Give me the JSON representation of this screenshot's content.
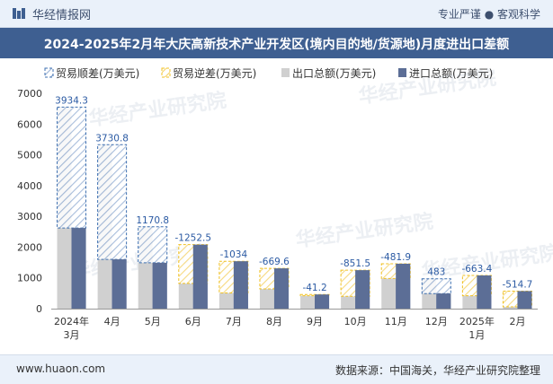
{
  "header": {
    "brand": "华经情报网",
    "slogan": "专业严谨 ● 客观科学"
  },
  "title": "2024-2025年2月年大庆高新技术产业开发区(境内目的地/货源地)月度进出口差额",
  "footer": {
    "website": "www.huaon.com",
    "source": "数据来源：中国海关，华经产业研究院整理"
  },
  "watermark": "华经产业研究院",
  "colors": {
    "surplus_border": "#3d6fb0",
    "deficit_border": "#f0c020",
    "export": "#d0d0d0",
    "import": "#5c6e96",
    "label": "#2b5aa3"
  },
  "chart_data": {
    "type": "bar",
    "legend": [
      "贸易顺差(万美元)",
      "贸易逆差(万美元)",
      "出口总额(万美元)",
      "进口总额(万美元)"
    ],
    "categories": [
      "2024年\n3月",
      "4月",
      "5月",
      "6月",
      "7月",
      "8月",
      "9月",
      "10月",
      "11月",
      "12月",
      "2025年\n1月",
      "2月"
    ],
    "export": [
      6550,
      5330,
      2660,
      820,
      510,
      640,
      420,
      400,
      980,
      970,
      420,
      60
    ],
    "import": [
      2620,
      1600,
      1490,
      2080,
      1540,
      1310,
      460,
      1250,
      1460,
      490,
      1080,
      570
    ],
    "balance": [
      3934.3,
      3730.8,
      1170.8,
      -1252.5,
      -1034,
      -669.6,
      -41.2,
      -851.5,
      -481.9,
      483,
      -663.4,
      -514.7
    ],
    "balance_labels": [
      "3934.3",
      "3730.8",
      "1170.8",
      "-1252.5",
      "-1034",
      "-669.6",
      "-41.2",
      "-851.5",
      "-481.9",
      "483",
      "-663.4",
      "-514.7"
    ],
    "ylim": [
      0,
      7000
    ],
    "yticks": [
      "0",
      "1000",
      "2000",
      "3000",
      "4000",
      "5000",
      "6000",
      "7000"
    ]
  }
}
